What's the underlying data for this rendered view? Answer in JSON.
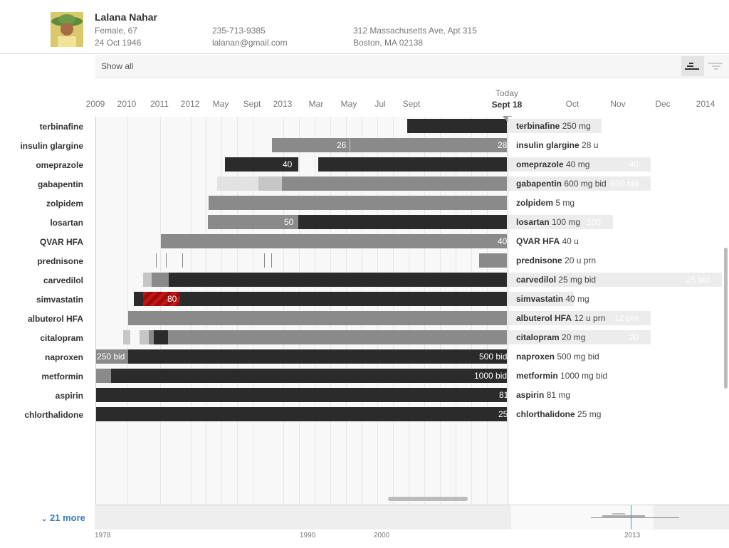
{
  "patient": {
    "name": "Lalana Nahar",
    "sex_age": "Female, 67",
    "dob": "24 Oct 1946",
    "phone": "235-713-9385",
    "email": "lalanan@gmail.com",
    "address1": "312 Massachusetts Ave, Apt 315",
    "address2": "Boston, MA 02138"
  },
  "filter": {
    "label": "Show all"
  },
  "timeline": {
    "labels": [
      "2009",
      "2010",
      "2011",
      "2012",
      "May",
      "Sept",
      "2013",
      "Mar",
      "May",
      "Jul",
      "Sept",
      "Oct",
      "Nov",
      "Dec",
      "2014"
    ],
    "today_label": "Today",
    "today_date": "Sept 18"
  },
  "meds": [
    {
      "name": "terbinafine",
      "dose_name": "terbinafine",
      "dose_value": "250 mg"
    },
    {
      "name": "insulin glargine",
      "dose_name": "insulin glargine",
      "dose_value": "28 u"
    },
    {
      "name": "omeprazole",
      "dose_name": "omeprazole",
      "dose_value": "40 mg",
      "ghost": "40"
    },
    {
      "name": "gabapentin",
      "dose_name": "gabapentin",
      "dose_value": "600 mg bid",
      "ghost": "600 bid"
    },
    {
      "name": "zolpidem",
      "dose_name": "zolpidem",
      "dose_value": "5 mg"
    },
    {
      "name": "losartan",
      "dose_name": "losartan",
      "dose_value": "100 mg",
      "ghost": "100"
    },
    {
      "name": "QVAR HFA",
      "dose_name": "QVAR HFA",
      "dose_value": "40 u"
    },
    {
      "name": "prednisone",
      "dose_name": "prednisone",
      "dose_value": "20 u prn"
    },
    {
      "name": "carvedilol",
      "dose_name": "carvedilol",
      "dose_value": " 25 mg bid",
      "ghost": "25 bid"
    },
    {
      "name": "simvastatin",
      "dose_name": "simvastatin",
      "dose_value": "40 mg"
    },
    {
      "name": "albuterol HFA",
      "dose_name": "albuterol HFA",
      "dose_value": "12 u prn",
      "ghost": "12 prn"
    },
    {
      "name": "citalopram",
      "dose_name": "citalopram",
      "dose_value": "20 mg",
      "ghost": "20"
    },
    {
      "name": "naproxen",
      "dose_name": "naproxen",
      "dose_value": "500 mg bid"
    },
    {
      "name": "metformin",
      "dose_name": "metformin",
      "dose_value": "1000 mg bid"
    },
    {
      "name": "aspirin",
      "dose_name": "aspirin",
      "dose_value": "81 mg"
    },
    {
      "name": "chlorthalidone",
      "dose_name": "chlorthalidone",
      "dose_value": "25 mg"
    }
  ],
  "bar_labels": {
    "insulin_a": "26",
    "insulin_b": "28",
    "omeprazole": "40",
    "losartan": "50",
    "qvar": "40",
    "simvastatin": "80",
    "naproxen_a": "250 bid",
    "naproxen_b": "500 bid",
    "metformin": "1000 bid",
    "aspirin": "81",
    "chlorthalidone": "25"
  },
  "more": {
    "label": "21 more"
  },
  "overview": {
    "labels": [
      "1978",
      "1990",
      "2000",
      "2013"
    ]
  },
  "colors": {
    "dark": "#2b2b2b",
    "mid": "#8a8a8a",
    "light": "#c6c6c6",
    "pale": "#e2e2e2",
    "alert": "#c41414",
    "link": "#3b7bbf"
  }
}
